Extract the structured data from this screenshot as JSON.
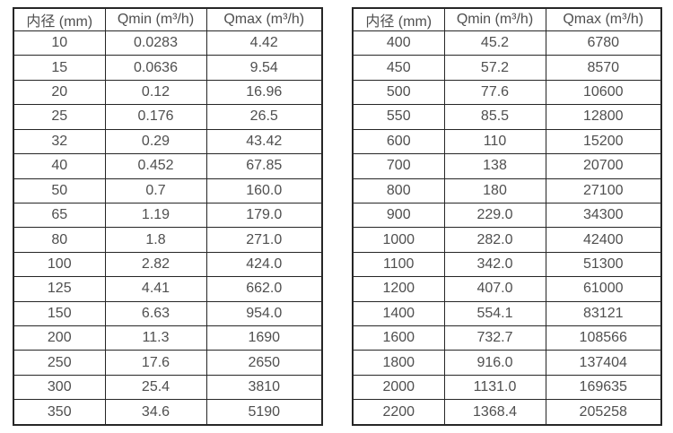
{
  "colors": {
    "background": "#ffffff",
    "border": "#262626",
    "text": "#4f4f4f"
  },
  "tables": [
    {
      "name": "flow-spec-table-dn10-dn350",
      "headers": [
        "内径 (mm)",
        "Qmin (m³/h)",
        "Qmax (m³/h)"
      ],
      "rows": [
        [
          "10",
          "0.0283",
          "4.42"
        ],
        [
          "15",
          "0.0636",
          "9.54"
        ],
        [
          "20",
          "0.12",
          "16.96"
        ],
        [
          "25",
          "0.176",
          "26.5"
        ],
        [
          "32",
          "0.29",
          "43.42"
        ],
        [
          "40",
          "0.452",
          "67.85"
        ],
        [
          "50",
          "0.7",
          "160.0"
        ],
        [
          "65",
          "1.19",
          "179.0"
        ],
        [
          "80",
          "1.8",
          "271.0"
        ],
        [
          "100",
          "2.82",
          "424.0"
        ],
        [
          "125",
          "4.41",
          "662.0"
        ],
        [
          "150",
          "6.63",
          "954.0"
        ],
        [
          "200",
          "11.3",
          "1690"
        ],
        [
          "250",
          "17.6",
          "2650"
        ],
        [
          "300",
          "25.4",
          "3810"
        ],
        [
          "350",
          "34.6",
          "5190"
        ]
      ]
    },
    {
      "name": "flow-spec-table-dn400-dn2200",
      "headers": [
        "内径 (mm)",
        "Qmin (m³/h)",
        "Qmax (m³/h)"
      ],
      "rows": [
        [
          "400",
          "45.2",
          "6780"
        ],
        [
          "450",
          "57.2",
          "8570"
        ],
        [
          "500",
          "77.6",
          "10600"
        ],
        [
          "550",
          "85.5",
          "12800"
        ],
        [
          "600",
          "110",
          "15200"
        ],
        [
          "700",
          "138",
          "20700"
        ],
        [
          "800",
          "180",
          "27100"
        ],
        [
          "900",
          "229.0",
          "34300"
        ],
        [
          "1000",
          "282.0",
          "42400"
        ],
        [
          "1100",
          "342.0",
          "51300"
        ],
        [
          "1200",
          "407.0",
          "61000"
        ],
        [
          "1400",
          "554.1",
          "83121"
        ],
        [
          "1600",
          "732.7",
          "108566"
        ],
        [
          "1800",
          "916.0",
          "137404"
        ],
        [
          "2000",
          "1131.0",
          "169635"
        ],
        [
          "2200",
          "1368.4",
          "205258"
        ]
      ]
    }
  ]
}
